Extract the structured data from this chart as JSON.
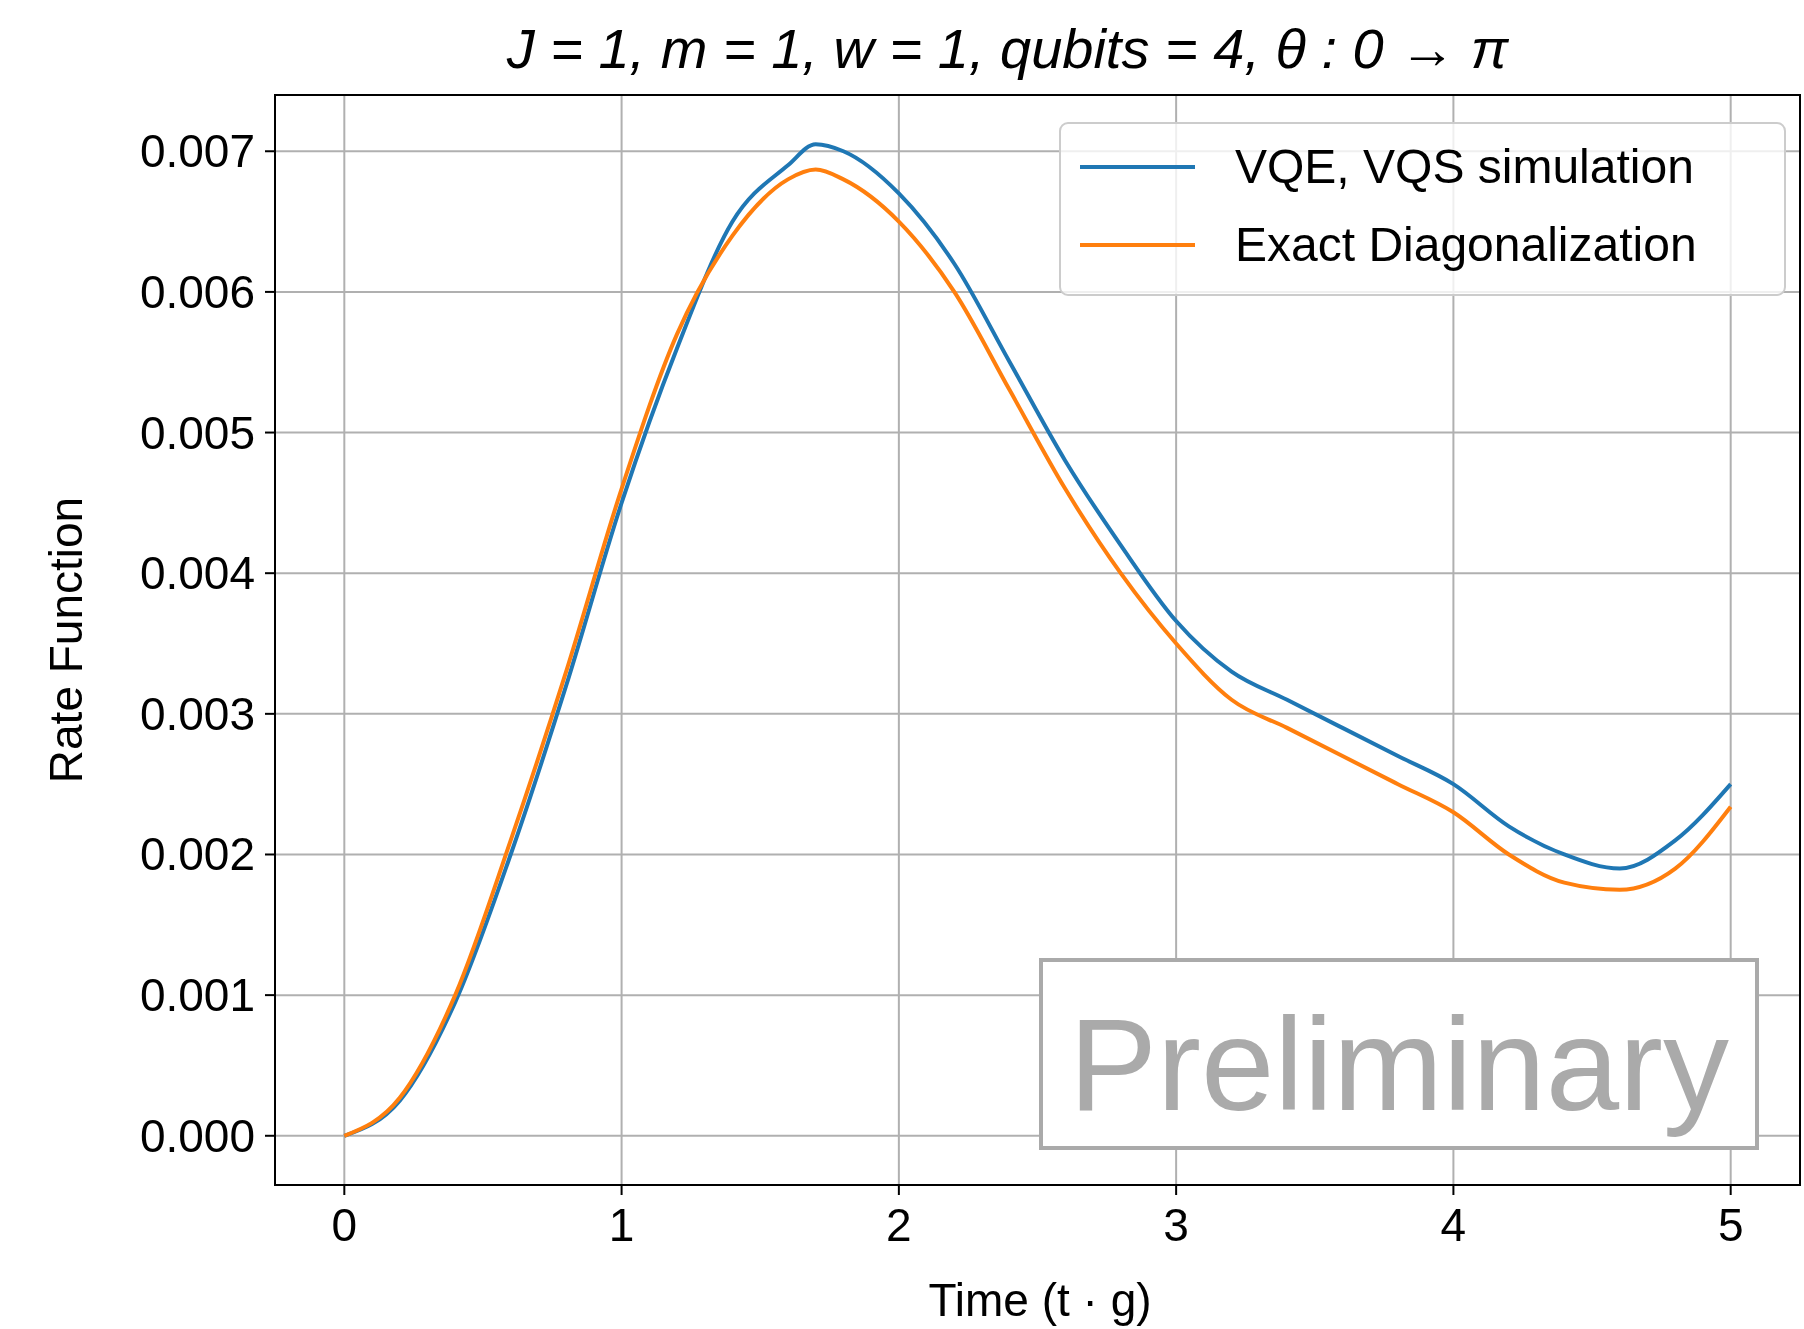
{
  "chart_data": {
    "type": "line",
    "title": "J = 1, m = 1, w = 1, qubits = 4, θ : 0 → π",
    "xlabel": "Time (t · g)",
    "ylabel": "Rate Function",
    "x": [
      0,
      0.2,
      0.4,
      0.6,
      0.8,
      1.0,
      1.2,
      1.4,
      1.6,
      1.7,
      1.8,
      2.0,
      2.2,
      2.4,
      2.6,
      2.8,
      3.0,
      3.2,
      3.4,
      3.6,
      3.8,
      4.0,
      4.2,
      4.4,
      4.6,
      4.8,
      5.0
    ],
    "series": [
      {
        "name": "VQE, VQS simulation",
        "color": "#1f77b4",
        "values": [
          0,
          0.00025,
          0.00095,
          0.002,
          0.0032,
          0.0045,
          0.0056,
          0.0065,
          0.0069,
          0.00705,
          0.007,
          0.0067,
          0.0062,
          0.0055,
          0.0048,
          0.0042,
          0.00366,
          0.0033,
          0.0031,
          0.0029,
          0.0027,
          0.0025,
          0.0022,
          0.002,
          0.0019,
          0.0021,
          0.0025
        ]
      },
      {
        "name": "Exact Diagonalization",
        "color": "#ff7f0e",
        "values": [
          0,
          0.00027,
          0.001,
          0.0021,
          0.0033,
          0.0046,
          0.0057,
          0.0064,
          0.0068,
          0.00687,
          0.0068,
          0.0065,
          0.006,
          0.0053,
          0.0046,
          0.004,
          0.0035,
          0.0031,
          0.0029,
          0.0027,
          0.0025,
          0.0023,
          0.002,
          0.0018,
          0.00175,
          0.0019,
          0.00234
        ]
      }
    ],
    "xlim": [
      -0.25,
      5.25
    ],
    "xticks": [
      0,
      1,
      2,
      3,
      4,
      5
    ],
    "ylim": [
      -0.00035,
      0.0074
    ],
    "yticks": [
      {
        "value": 0,
        "label": "0.000"
      },
      {
        "value": 0.001,
        "label": "0.001"
      },
      {
        "value": 0.002,
        "label": "0.002"
      },
      {
        "value": 0.003,
        "label": "0.003"
      },
      {
        "value": 0.004,
        "label": "0.004"
      },
      {
        "value": 0.005,
        "label": "0.005"
      },
      {
        "value": 0.006,
        "label": "0.006"
      },
      {
        "value": 0.007,
        "label": "0.007"
      }
    ],
    "grid": true,
    "legend": "top right",
    "marker": "none",
    "line_style": "solid",
    "annotations": [
      "Preliminary"
    ]
  }
}
